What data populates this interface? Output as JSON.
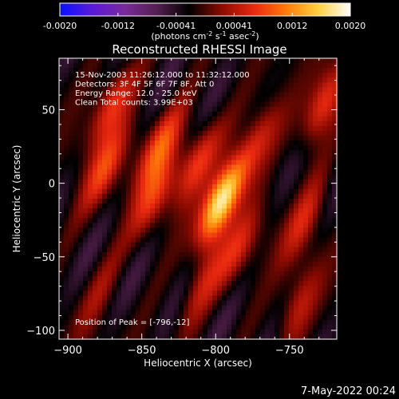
{
  "colorbar": {
    "tick_labels": [
      "-0.0020",
      "-0.0012",
      "-0.00041",
      "0.00041",
      "0.0012",
      "0.0020"
    ],
    "unit_label_main": "(photons cm",
    "unit_label_exp1": "-2",
    "unit_label_mid": " s",
    "unit_label_exp2": "-1",
    "unit_label_end": " asec",
    "unit_label_exp3": "-2",
    "unit_label_close": ")",
    "gradient_colors": [
      "#0a10ff",
      "#5a1ad8",
      "#7a2a9a",
      "#552050",
      "#000000",
      "#8a0a00",
      "#e82810",
      "#ff7a08",
      "#ffd040",
      "#ffffff"
    ]
  },
  "chart_data": {
    "type": "heatmap",
    "title": "Reconstructed RHESSI Image",
    "xlabel": "Heliocentric X (arcsec)",
    "ylabel": "Heliocentric Y (arcsec)",
    "xlim": [
      -906,
      -718
    ],
    "ylim": [
      -106,
      85
    ],
    "x_ticks": [
      -900,
      -850,
      -800,
      -750
    ],
    "y_ticks": [
      50,
      0,
      -50,
      -100
    ],
    "x_tick_labels": [
      "−900",
      "−850",
      "−800",
      "−750"
    ],
    "y_tick_labels": [
      "50",
      "0",
      "−50",
      "−100"
    ],
    "zlim": [
      -0.002,
      0.002
    ],
    "peak_position": [
      -796,
      -12
    ],
    "info_lines": [
      "15-Nov-2003 11:26:12.000 to 11:32:12.000",
      "Detectors: 3F 4F 5F 6F 7F 8F, Att 0",
      "Energy Range: 12.0 - 25.0 keV",
      "Clean    Total counts: 3.99E+03"
    ],
    "peak_text": "Position of Peak = [-796,-12]",
    "sources": [
      {
        "x": -796,
        "y": -12,
        "amplitude": 0.002
      },
      {
        "x": -812,
        "y": 15,
        "amplitude": 0.0009
      },
      {
        "x": -838,
        "y": 25,
        "amplitude": 0.001
      },
      {
        "x": -842,
        "y": -10,
        "amplitude": 0.0008
      },
      {
        "x": -875,
        "y": 10,
        "amplitude": 0.0009
      },
      {
        "x": -870,
        "y": 55,
        "amplitude": 0.0009
      },
      {
        "x": -772,
        "y": 30,
        "amplitude": 0.0009
      },
      {
        "x": -785,
        "y": -45,
        "amplitude": 0.0007
      },
      {
        "x": -810,
        "y": -70,
        "amplitude": 0.0006
      },
      {
        "x": -728,
        "y": 52,
        "amplitude": 0.001
      },
      {
        "x": -740,
        "y": -25,
        "amplitude": 0.0007
      },
      {
        "x": -745,
        "y": -85,
        "amplitude": 0.0006
      },
      {
        "x": -880,
        "y": -75,
        "amplitude": 0.0004
      }
    ]
  },
  "footer": {
    "date": "7-May-2022 00:24"
  }
}
